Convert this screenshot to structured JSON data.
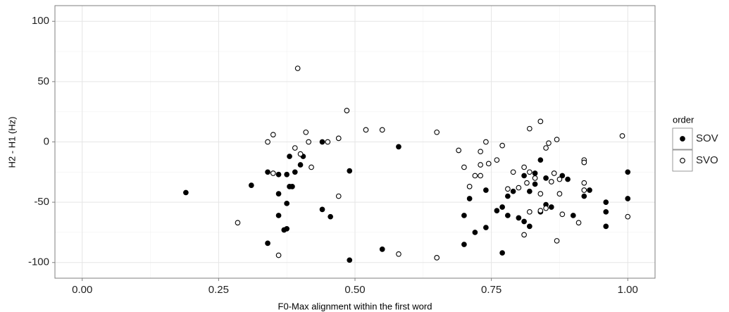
{
  "chart_data": {
    "type": "scatter",
    "xlabel": "F0-Max alignment within the first word",
    "ylabel": "H2 - H1 (Hz)",
    "legend_title": "order",
    "legend_position": "right",
    "grid": true,
    "xlim": [
      -0.05,
      1.05
    ],
    "ylim": [
      -113,
      113
    ],
    "xticks": [
      {
        "value": 0,
        "label": "0.00"
      },
      0.25,
      {
        "value": 0.5,
        "label": "0.50"
      },
      0.75,
      {
        "value": 1,
        "label": "1.00"
      }
    ],
    "yticks": [
      -100,
      -50,
      0,
      50,
      100
    ],
    "series": [
      {
        "name": "SOV",
        "color": "#000000",
        "fill": "#000000",
        "x": [
          0.19,
          0.31,
          0.34,
          0.34,
          0.36,
          0.36,
          0.36,
          0.37,
          0.375,
          0.375,
          0.375,
          0.38,
          0.385,
          0.39,
          0.4,
          0.405,
          0.38,
          0.44,
          0.44,
          0.455,
          0.49,
          0.49,
          0.55,
          0.58,
          0.7,
          0.7,
          0.71,
          0.72,
          0.74,
          0.74,
          0.76,
          0.77,
          0.77,
          0.78,
          0.78,
          0.79,
          0.8,
          0.81,
          0.81,
          0.82,
          0.82,
          0.83,
          0.83,
          0.84,
          0.84,
          0.85,
          0.85,
          0.86,
          0.88,
          0.89,
          0.9,
          0.93,
          0.96,
          0.96,
          0.96,
          1.0,
          1.0,
          0.92
        ],
        "y": [
          -42,
          -36,
          -84,
          -25,
          -27,
          -43,
          -61,
          -73,
          -72,
          -51,
          -27,
          -37,
          -37,
          -25,
          -19,
          -12,
          -12,
          0,
          -56,
          -62,
          -24,
          -98,
          -89,
          -4,
          -61,
          -85,
          -47,
          -75,
          -40,
          -71,
          -57,
          -92,
          -54,
          -45,
          -61,
          -41,
          -63,
          -66,
          -28,
          -41,
          -70,
          -26,
          -35,
          -15,
          -58,
          -30,
          -52,
          -54,
          -28,
          -31,
          -61,
          -40,
          -50,
          -58,
          -70,
          -25,
          -47,
          -45
        ]
      },
      {
        "name": "SVO",
        "color": "#000000",
        "fill": "#ffffff",
        "x": [
          0.285,
          0.34,
          0.35,
          0.35,
          0.36,
          0.39,
          0.395,
          0.4,
          0.41,
          0.415,
          0.42,
          0.45,
          0.47,
          0.47,
          0.485,
          0.52,
          0.55,
          0.58,
          0.65,
          0.65,
          0.69,
          0.7,
          0.71,
          0.72,
          0.73,
          0.73,
          0.73,
          0.74,
          0.745,
          0.76,
          0.77,
          0.78,
          0.79,
          0.8,
          0.81,
          0.81,
          0.815,
          0.82,
          0.82,
          0.82,
          0.83,
          0.84,
          0.84,
          0.84,
          0.85,
          0.85,
          0.855,
          0.86,
          0.865,
          0.87,
          0.87,
          0.875,
          0.875,
          0.88,
          0.92,
          0.92,
          0.92,
          0.92,
          0.91,
          0.99,
          1.0
        ],
        "y": [
          -67,
          0,
          6,
          -26,
          -94,
          -5,
          61,
          -10,
          8,
          0,
          -21,
          0,
          3,
          -45,
          26,
          10,
          10,
          -93,
          -96,
          8,
          -7,
          -21,
          -37,
          -28,
          -19,
          -8,
          -28,
          0,
          -18,
          -15,
          -3,
          -39,
          -25,
          -38,
          -21,
          -77,
          -34,
          11,
          -25,
          -58,
          -30,
          17,
          -43,
          -57,
          -5,
          -55,
          -1,
          -33,
          -26,
          2,
          -82,
          -31,
          -43,
          -60,
          -34,
          -15,
          -17,
          -40,
          -67,
          5,
          -62
        ]
      }
    ]
  }
}
